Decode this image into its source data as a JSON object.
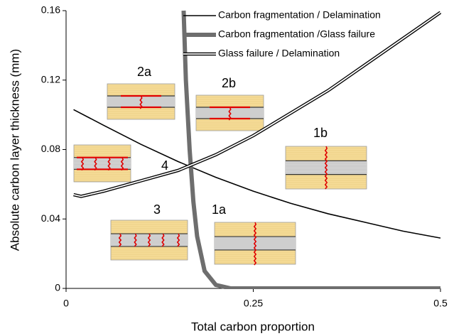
{
  "chart_data": {
    "type": "line",
    "x_label": "Total carbon proportion",
    "y_label": "Absolute carbon layer thickness (mm)",
    "xlim": [
      0,
      0.5
    ],
    "xticks": [
      0,
      0.25,
      0.5
    ],
    "ylim": [
      0,
      0.16
    ],
    "yticks": [
      0,
      0.04,
      0.08,
      0.12,
      0.16
    ],
    "legend": "upper right",
    "series": [
      {
        "name": "Carbon fragmentation / Delamination",
        "color": "#000000",
        "width": 1.6,
        "style": "solid",
        "x": [
          0.01,
          0.05,
          0.1,
          0.15,
          0.2,
          0.25,
          0.3,
          0.35,
          0.4,
          0.45,
          0.5
        ],
        "values": [
          0.103,
          0.094,
          0.083,
          0.073,
          0.064,
          0.056,
          0.049,
          0.043,
          0.038,
          0.033,
          0.029
        ]
      },
      {
        "name": "Carbon fragmentation /Glass failure",
        "color": "#6e6e6e",
        "width": 6,
        "style": "solid",
        "x": [
          0.157,
          0.16,
          0.165,
          0.17,
          0.175,
          0.185,
          0.2,
          0.22,
          0.5
        ],
        "values": [
          0.16,
          0.12,
          0.08,
          0.05,
          0.03,
          0.01,
          0.002,
          0,
          0
        ]
      },
      {
        "name": "Glass failure / Delamination",
        "color": "#000000",
        "width": 4.5,
        "style": "double",
        "x": [
          0.01,
          0.02,
          0.05,
          0.1,
          0.15,
          0.2,
          0.25,
          0.3,
          0.35,
          0.4,
          0.45,
          0.5
        ],
        "values": [
          0.054,
          0.053,
          0.056,
          0.062,
          0.068,
          0.077,
          0.088,
          0.101,
          0.114,
          0.129,
          0.144,
          0.159
        ]
      }
    ],
    "annotations": [
      "2a",
      "2b",
      "1b",
      "4",
      "3",
      "1a"
    ]
  }
}
